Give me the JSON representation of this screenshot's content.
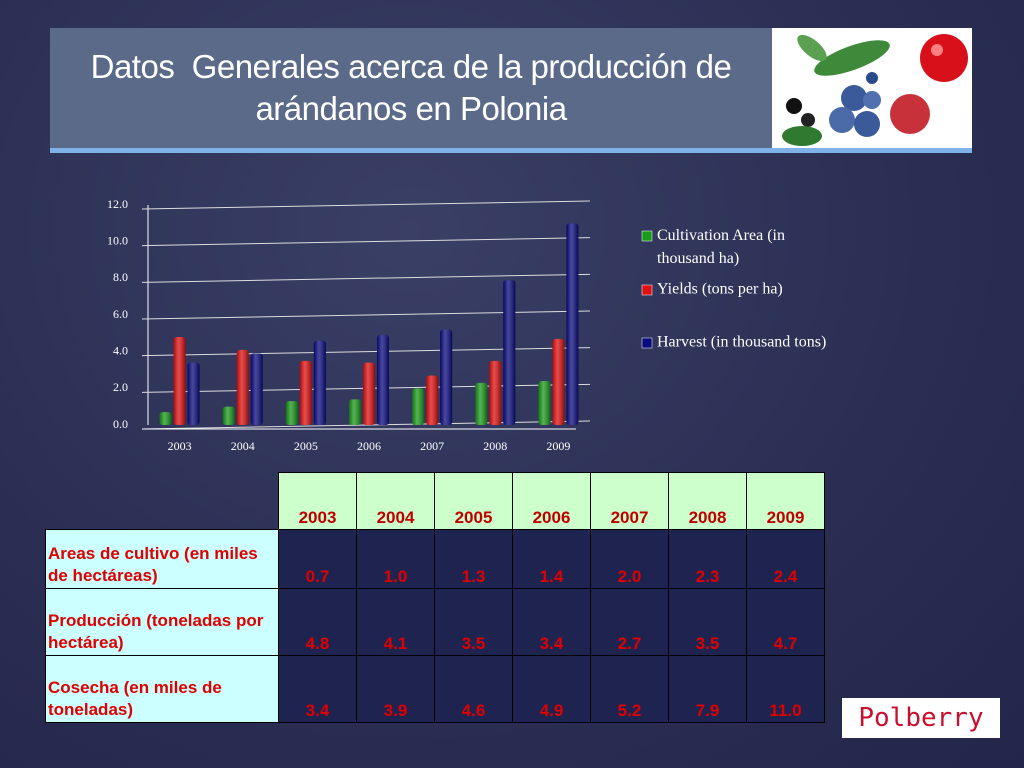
{
  "header": {
    "title": "Datos  Generales acerca de la producción de arándanos en Polonia"
  },
  "chart_data": {
    "type": "bar",
    "categories": [
      "2003",
      "2004",
      "2005",
      "2006",
      "2007",
      "2008",
      "2009"
    ],
    "series": [
      {
        "name": "Cultivation Area (in thousand ha)",
        "color": "#1a9a1a",
        "values": [
          0.7,
          1.0,
          1.3,
          1.4,
          2.0,
          2.3,
          2.4
        ]
      },
      {
        "name": "Yields (tons per ha)",
        "color": "#e01010",
        "values": [
          4.8,
          4.1,
          3.5,
          3.4,
          2.7,
          3.5,
          4.7
        ]
      },
      {
        "name": "Harvest (in thousand tons)",
        "color": "#0a0a80",
        "values": [
          3.4,
          3.9,
          4.6,
          4.9,
          5.2,
          7.9,
          11.0
        ]
      }
    ],
    "ylim": [
      0,
      12
    ],
    "yticks": [
      {
        "value": 0,
        "label": "0.0"
      },
      {
        "value": 2,
        "label": "2.0"
      },
      {
        "value": 4,
        "label": "4.0"
      },
      {
        "value": 6,
        "label": "6.0"
      },
      {
        "value": 8,
        "label": "8.0"
      },
      {
        "value": 10,
        "label": "10.0"
      },
      {
        "value": 12,
        "label": "12.0"
      }
    ],
    "grid": true,
    "legend": "right"
  },
  "table": {
    "header": [
      "2003",
      "2004",
      "2005",
      "2006",
      "2007",
      "2008",
      "2009"
    ],
    "rows": [
      [
        "Areas de cultivo (en miles de hectáreas)",
        "0.7",
        "1.0",
        "1.3",
        "1.4",
        "2.0",
        "2.3",
        "2.4"
      ],
      [
        "Producción (toneladas por hectárea)",
        "4.8",
        "4.1",
        "3.5",
        "3.4",
        "2.7",
        "3.5",
        "4.7"
      ],
      [
        "Cosecha (en miles de toneladas)",
        "3.4",
        "3.9",
        "4.6",
        "4.9",
        "5.2",
        "7.9",
        "11.0"
      ]
    ]
  },
  "logo": "Polberry"
}
